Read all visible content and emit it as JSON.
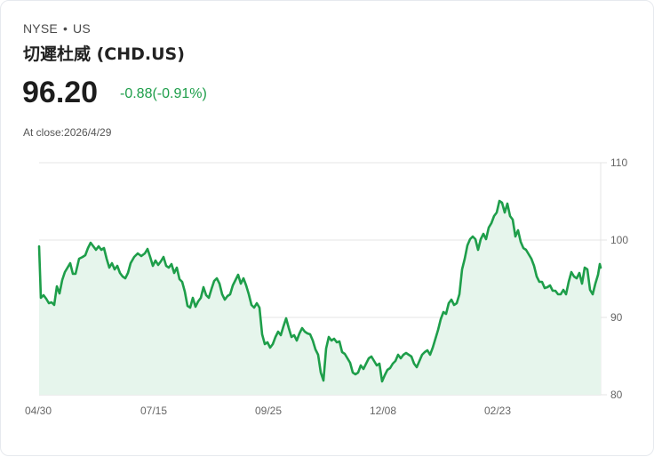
{
  "header": {
    "exchange": "NYSE",
    "separator": "•",
    "region": "US",
    "name": "切遲杜威 (CHD.US)",
    "price": "96.20",
    "change": "-0.88(-0.91%)",
    "as_of": "At close:2026/4/29"
  },
  "colors": {
    "line": "#1e9e4a",
    "fill": "#e6f5ec",
    "grid": "#e2e2e2",
    "change_text": "#1e9e4a"
  },
  "chart_data": {
    "type": "area",
    "title": "切遲杜威 (CHD.US)",
    "xlabel": "",
    "ylabel": "",
    "ylim": [
      80,
      110
    ],
    "y_ticks": [
      110,
      100,
      90,
      80
    ],
    "x_ticks": [
      "04/30",
      "07/15",
      "09/25",
      "12/08",
      "02/23"
    ],
    "grid": true,
    "y_axis_position": "right",
    "series": [
      {
        "name": "CHD.US close",
        "px": [
          [
            43,
            276
          ],
          [
            45,
            334
          ],
          [
            48,
            331
          ],
          [
            51,
            335
          ],
          [
            54,
            340
          ],
          [
            57,
            339
          ],
          [
            60,
            342
          ],
          [
            63,
            321
          ],
          [
            66,
            329
          ],
          [
            69,
            314
          ],
          [
            72,
            305
          ],
          [
            75,
            300
          ],
          [
            78,
            295
          ],
          [
            81,
            307
          ],
          [
            84,
            307
          ],
          [
            88,
            290
          ],
          [
            92,
            288
          ],
          [
            95,
            286
          ],
          [
            98,
            278
          ],
          [
            101,
            272
          ],
          [
            104,
            276
          ],
          [
            107,
            280
          ],
          [
            110,
            276
          ],
          [
            113,
            280
          ],
          [
            116,
            278
          ],
          [
            119,
            290
          ],
          [
            122,
            300
          ],
          [
            125,
            295
          ],
          [
            128,
            302
          ],
          [
            131,
            298
          ],
          [
            134,
            306
          ],
          [
            137,
            310
          ],
          [
            140,
            312
          ],
          [
            143,
            306
          ],
          [
            146,
            295
          ],
          [
            150,
            288
          ],
          [
            154,
            284
          ],
          [
            158,
            287
          ],
          [
            162,
            284
          ],
          [
            165,
            279
          ],
          [
            168,
            288
          ],
          [
            171,
            298
          ],
          [
            174,
            292
          ],
          [
            177,
            297
          ],
          [
            180,
            293
          ],
          [
            183,
            288
          ],
          [
            186,
            298
          ],
          [
            189,
            300
          ],
          [
            192,
            296
          ],
          [
            195,
            306
          ],
          [
            198,
            300
          ],
          [
            201,
            313
          ],
          [
            204,
            316
          ],
          [
            207,
            327
          ],
          [
            210,
            343
          ],
          [
            213,
            345
          ],
          [
            216,
            334
          ],
          [
            219,
            344
          ],
          [
            222,
            338
          ],
          [
            225,
            334
          ],
          [
            228,
            322
          ],
          [
            231,
            331
          ],
          [
            234,
            334
          ],
          [
            237,
            324
          ],
          [
            240,
            315
          ],
          [
            243,
            312
          ],
          [
            246,
            318
          ],
          [
            249,
            330
          ],
          [
            252,
            336
          ],
          [
            255,
            332
          ],
          [
            258,
            330
          ],
          [
            261,
            320
          ],
          [
            264,
            314
          ],
          [
            267,
            308
          ],
          [
            270,
            318
          ],
          [
            273,
            312
          ],
          [
            276,
            320
          ],
          [
            279,
            330
          ],
          [
            282,
            342
          ],
          [
            285,
            345
          ],
          [
            288,
            340
          ],
          [
            291,
            345
          ],
          [
            294,
            375
          ],
          [
            297,
            386
          ],
          [
            300,
            384
          ],
          [
            303,
            390
          ],
          [
            306,
            386
          ],
          [
            309,
            378
          ],
          [
            312,
            372
          ],
          [
            315,
            376
          ],
          [
            318,
            366
          ],
          [
            321,
            357
          ],
          [
            324,
            368
          ],
          [
            327,
            378
          ],
          [
            330,
            376
          ],
          [
            333,
            382
          ],
          [
            336,
            374
          ],
          [
            339,
            368
          ],
          [
            342,
            372
          ],
          [
            345,
            374
          ],
          [
            348,
            375
          ],
          [
            351,
            382
          ],
          [
            354,
            392
          ],
          [
            357,
            398
          ],
          [
            360,
            418
          ],
          [
            363,
            427
          ],
          [
            366,
            391
          ],
          [
            369,
            378
          ],
          [
            372,
            382
          ],
          [
            375,
            380
          ],
          [
            378,
            384
          ],
          [
            381,
            383
          ],
          [
            384,
            395
          ],
          [
            387,
            397
          ],
          [
            390,
            402
          ],
          [
            393,
            407
          ],
          [
            396,
            418
          ],
          [
            399,
            420
          ],
          [
            402,
            418
          ],
          [
            405,
            410
          ],
          [
            408,
            414
          ],
          [
            411,
            408
          ],
          [
            414,
            402
          ],
          [
            417,
            400
          ],
          [
            420,
            405
          ],
          [
            423,
            410
          ],
          [
            426,
            408
          ],
          [
            429,
            428
          ],
          [
            432,
            421
          ],
          [
            435,
            415
          ],
          [
            438,
            413
          ],
          [
            441,
            408
          ],
          [
            444,
            405
          ],
          [
            447,
            398
          ],
          [
            450,
            402
          ],
          [
            453,
            398
          ],
          [
            456,
            396
          ],
          [
            459,
            398
          ],
          [
            462,
            400
          ],
          [
            465,
            408
          ],
          [
            468,
            412
          ],
          [
            471,
            405
          ],
          [
            474,
            398
          ],
          [
            477,
            395
          ],
          [
            480,
            393
          ],
          [
            483,
            398
          ],
          [
            486,
            390
          ],
          [
            489,
            380
          ],
          [
            492,
            370
          ],
          [
            495,
            358
          ],
          [
            498,
            350
          ],
          [
            501,
            352
          ],
          [
            504,
            340
          ],
          [
            507,
            336
          ],
          [
            510,
            342
          ],
          [
            513,
            340
          ],
          [
            516,
            330
          ],
          [
            519,
            302
          ],
          [
            522,
            290
          ],
          [
            525,
            275
          ],
          [
            528,
            268
          ],
          [
            531,
            265
          ],
          [
            534,
            268
          ],
          [
            537,
            280
          ],
          [
            540,
            268
          ],
          [
            543,
            262
          ],
          [
            546,
            268
          ],
          [
            549,
            255
          ],
          [
            552,
            250
          ],
          [
            555,
            242
          ],
          [
            558,
            238
          ],
          [
            561,
            225
          ],
          [
            564,
            227
          ],
          [
            567,
            238
          ],
          [
            570,
            228
          ],
          [
            573,
            242
          ],
          [
            576,
            246
          ],
          [
            579,
            265
          ],
          [
            582,
            258
          ],
          [
            585,
            271
          ],
          [
            588,
            278
          ],
          [
            591,
            280
          ],
          [
            594,
            285
          ],
          [
            597,
            290
          ],
          [
            600,
            298
          ],
          [
            603,
            310
          ],
          [
            606,
            316
          ],
          [
            609,
            316
          ],
          [
            612,
            323
          ],
          [
            615,
            322
          ],
          [
            618,
            320
          ],
          [
            621,
            326
          ],
          [
            624,
            326
          ],
          [
            627,
            330
          ],
          [
            630,
            330
          ],
          [
            633,
            325
          ],
          [
            636,
            330
          ],
          [
            639,
            316
          ],
          [
            642,
            305
          ],
          [
            645,
            310
          ],
          [
            648,
            312
          ],
          [
            651,
            306
          ],
          [
            654,
            318
          ],
          [
            657,
            300
          ],
          [
            660,
            302
          ],
          [
            663,
            325
          ],
          [
            666,
            330
          ],
          [
            669,
            318
          ],
          [
            672,
            308
          ],
          [
            674,
            296
          ],
          [
            675,
            300
          ]
        ],
        "note": "px pairs map to values via value = 110 - (y-182)/8.7; x from 04/30/2025 to 04/29/2026"
      }
    ],
    "key_values": {
      "start": 98.9,
      "mid_july_high": 99.9,
      "min_dec": 81.7,
      "max_feb": 105.2,
      "end": 96.2
    }
  }
}
